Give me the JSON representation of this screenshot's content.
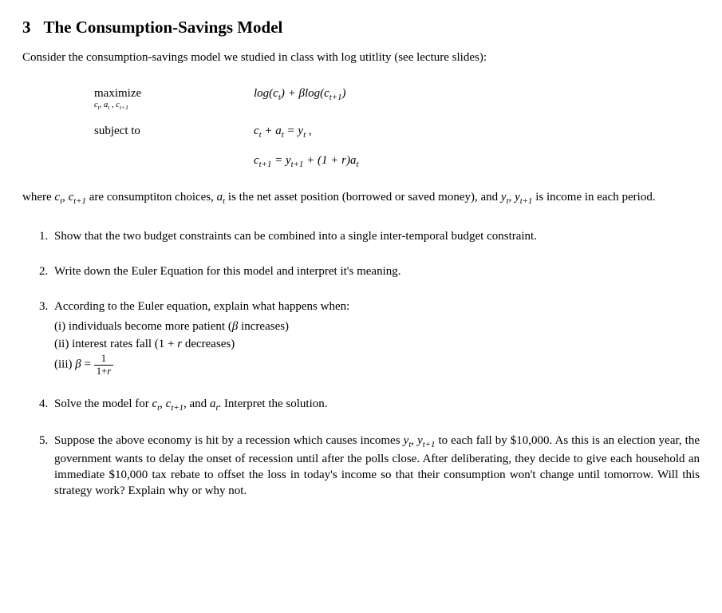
{
  "section": {
    "number": "3",
    "title": "The Consumption-Savings Model"
  },
  "intro": "Consider the consumption-savings model we studied in class with log utitlity (see lecture slides):",
  "optimization": {
    "maximize_label": "maximize",
    "maximize_sub": "cₜ, aₜ, cₜ₊₁",
    "objective_pre": "log",
    "objective_mid": ") + βlog(",
    "subject_label": "subject to",
    "constraint1_rhs": " = yₜ ,",
    "constraint2_mid": " = yₜ₊₁ + (1 + r)"
  },
  "explain": {
    "pre": "where ",
    "mid1": " are consumptiton choices, ",
    "mid2": " is the net asset position (borrowed or saved money), and ",
    "post": " is income in each period."
  },
  "questions": {
    "q1": "Show that the two budget constraints can be combined into a single inter-temporal budget constraint.",
    "q2": "Write down the Euler Equation for this model and interpret it's meaning.",
    "q3_lead": "According to the Euler equation, explain what happens when:",
    "q3_i": "(i) individuals become more patient (β increases)",
    "q3_ii_pre": "(ii) interest rates fall (1 + ",
    "q3_ii_post": " decreases)",
    "q3_iii_pre": "(iii) β = ",
    "q3_iii_num": "1",
    "q3_iii_den": "1+r",
    "q4_pre": "Solve the model for ",
    "q4_post": ". Interpret the solution.",
    "q5_pre": "Suppose the above economy is hit by a recession which causes incomes ",
    "q5_post": " to each fall by $10,000. As this is an election year, the government wants to delay the onset of recession until after the polls close. After deliberating, they decide to give each household an immediate $10,000 tax rebate to offset the loss in today's income so that their consumption won't change until tomorrow. Will this strategy work? Explain why or why not."
  },
  "symbols": {
    "ct": "cₜ",
    "ct1": "cₜ₊₁",
    "at": "aₜ",
    "yt": "yₜ",
    "yt1": "yₜ₊₁",
    "r": "r",
    "and": ", and "
  }
}
